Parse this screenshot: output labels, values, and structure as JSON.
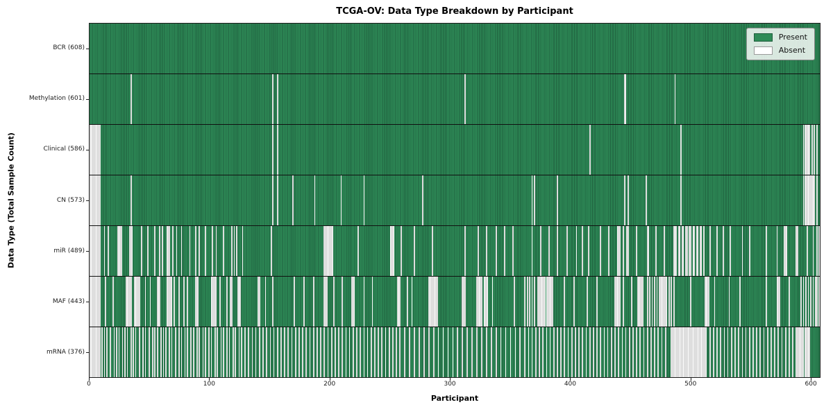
{
  "figure": {
    "title": "TCGA-OV: Data Type Breakdown by Participant",
    "xlabel": "Participant",
    "ylabel": "Data Type (Total Sample Count)"
  },
  "legend": {
    "items": [
      {
        "label": "Present",
        "color": "#2e8b57",
        "edge": "#1e5e3c"
      },
      {
        "label": "Absent",
        "color": "#ffffff",
        "edge": "#9a9a9a"
      }
    ]
  },
  "chart_data": {
    "type": "heatmap",
    "title": "TCGA-OV: Data Type Breakdown by Participant",
    "xlabel": "Participant",
    "ylabel": "Data Type (Total Sample Count)",
    "legend": [
      "Present",
      "Absent"
    ],
    "legend_position": "upper right",
    "x_ticks": [
      0,
      100,
      200,
      300,
      400,
      500,
      600
    ],
    "total_participants": 608,
    "present_color": "#2e8b57",
    "present_edge": "#1e5e3c",
    "absent_color": "#fbfbfb",
    "absent_edge": "#c2c2c2",
    "rows": [
      {
        "name": "BCR",
        "count": 608,
        "label": "BCR (608)",
        "absent": []
      },
      {
        "name": "Methylation",
        "count": 601,
        "label": "Methylation (601)",
        "absent": [
          34,
          152,
          156,
          312,
          445,
          446,
          487
        ]
      },
      {
        "name": "Clinical",
        "count": 586,
        "label": "Clinical (586)",
        "absent": [
          [
            0,
            8
          ],
          152,
          156,
          416,
          492,
          [
            594,
            599
          ],
          601,
          603,
          605
        ]
      },
      {
        "name": "CN",
        "count": 573,
        "label": "CN (573)",
        "absent": [
          [
            0,
            8
          ],
          34,
          152,
          156,
          169,
          187,
          209,
          228,
          277,
          368,
          370,
          389,
          445,
          448,
          463,
          492,
          [
            594,
            603
          ],
          605
        ]
      },
      {
        "name": "miR",
        "count": 489,
        "label": "miR (489)",
        "absent": [
          [
            0,
            8
          ],
          12,
          15,
          [
            23,
            26
          ],
          [
            33,
            35
          ],
          43,
          48,
          54,
          58,
          60,
          [
            64,
            66
          ],
          69,
          72,
          76,
          83,
          88,
          91,
          96,
          102,
          105,
          111,
          118,
          120,
          122,
          127,
          151,
          [
            195,
            202
          ],
          223,
          [
            250,
            253
          ],
          259,
          270,
          285,
          312,
          323,
          330,
          338,
          345,
          352,
          368,
          375,
          382,
          389,
          397,
          405,
          410,
          415,
          425,
          432,
          [
            439,
            441
          ],
          444,
          447,
          448,
          455,
          464,
          465,
          471,
          478,
          [
            486,
            488
          ],
          490,
          491,
          493,
          494,
          496,
          497,
          499,
          500,
          502,
          503,
          505,
          506,
          508,
          509,
          511,
          516,
          522,
          527,
          533,
          543,
          549,
          563,
          572,
          [
            578,
            580
          ],
          588,
          589,
          597,
          602,
          605,
          607
        ]
      },
      {
        "name": "MAF",
        "count": 443,
        "label": "MAF (443)",
        "absent": [
          [
            0,
            8
          ],
          13,
          19,
          [
            30,
            34
          ],
          [
            37,
            41
          ],
          46,
          50,
          56,
          57,
          58,
          [
            64,
            68
          ],
          70,
          74,
          78,
          81,
          88,
          89,
          90,
          101,
          102,
          103,
          104,
          105,
          108,
          114,
          117,
          118,
          123,
          124,
          125,
          140,
          141,
          146,
          152,
          170,
          178,
          186,
          195,
          196,
          197,
          203,
          210,
          218,
          219,
          220,
          228,
          235,
          256,
          257,
          258,
          264,
          268,
          [
            282,
            289
          ],
          310,
          311,
          312,
          [
            322,
            326
          ],
          328,
          329,
          330,
          331,
          335,
          353,
          362,
          364,
          366,
          368,
          370,
          [
            373,
            385
          ],
          395,
          403,
          414,
          422,
          [
            437,
            441
          ],
          444,
          451,
          [
            456,
            460
          ],
          464,
          466,
          468,
          470,
          472,
          [
            474,
            480
          ],
          482,
          484,
          486,
          500,
          [
            512,
            515
          ],
          520,
          532,
          541,
          563,
          [
            572,
            574
          ],
          582,
          592,
          594,
          596,
          598,
          600,
          602,
          604,
          605,
          607
        ]
      },
      {
        "name": "mRNA",
        "count": 376,
        "label": "mRNA (376)",
        "absent": [
          [
            0,
            8
          ],
          10,
          12,
          14,
          17,
          20,
          22,
          24,
          27,
          29,
          31,
          34,
          36,
          38,
          41,
          44,
          46,
          49,
          52,
          54,
          56,
          59,
          61,
          63,
          66,
          68,
          71,
          74,
          76,
          79,
          81,
          84,
          86,
          89,
          91,
          94,
          96,
          99,
          101,
          104,
          106,
          109,
          111,
          114,
          116,
          119,
          121,
          124,
          126,
          129,
          132,
          135,
          138,
          141,
          144,
          147,
          150,
          153,
          156,
          159,
          162,
          165,
          168,
          171,
          174,
          177,
          180,
          183,
          186,
          189,
          192,
          195,
          198,
          201,
          204,
          207,
          210,
          213,
          216,
          219,
          222,
          225,
          228,
          231,
          234,
          237,
          240,
          243,
          246,
          249,
          252,
          255,
          258,
          262,
          266,
          270,
          274,
          278,
          282,
          286,
          290,
          294,
          298,
          302,
          306,
          310,
          314,
          318,
          322,
          326,
          330,
          334,
          338,
          342,
          346,
          350,
          354,
          358,
          362,
          365,
          368,
          371,
          374,
          377,
          380,
          383,
          386,
          389,
          392,
          395,
          398,
          401,
          404,
          407,
          410,
          413,
          416,
          419,
          422,
          425,
          428,
          431,
          434,
          437,
          440,
          443,
          446,
          449,
          452,
          455,
          458,
          461,
          464,
          467,
          470,
          473,
          476,
          479,
          [
            484,
            513
          ],
          516,
          519,
          522,
          525,
          528,
          531,
          534,
          537,
          540,
          543,
          546,
          549,
          552,
          555,
          558,
          561,
          564,
          567,
          570,
          573,
          576,
          579,
          582,
          585,
          [
            588,
            599
          ]
        ]
      }
    ]
  }
}
